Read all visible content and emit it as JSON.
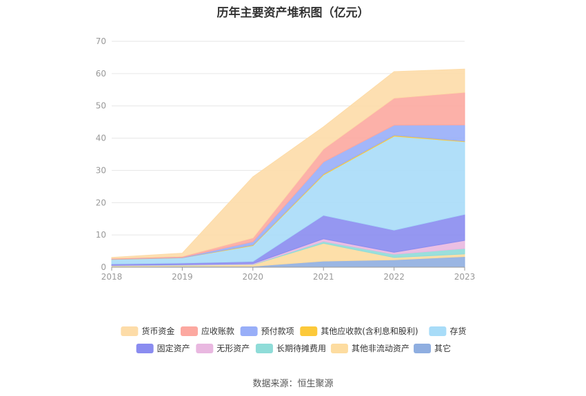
{
  "chart_data": {
    "type": "area",
    "title": "历年主要资产堆积图（亿元）",
    "x": [
      "2018",
      "2019",
      "2020",
      "2021",
      "2022",
      "2023"
    ],
    "ylim": [
      0,
      70
    ],
    "yticks": [
      0,
      10,
      20,
      30,
      40,
      50,
      60,
      70
    ],
    "grid": true,
    "legend_position": "bottom",
    "series": [
      {
        "name": "其它",
        "color": "#8faee0",
        "values": [
          0.2,
          0.3,
          0.3,
          1.9,
          2.3,
          3.3
        ]
      },
      {
        "name": "其他非流动资产",
        "color": "#fddca0",
        "values": [
          0.2,
          0.3,
          0.5,
          5.5,
          0.7,
          0.8
        ]
      },
      {
        "name": "长期待摊费用",
        "color": "#8fdcd8",
        "values": [
          0.1,
          0.1,
          0.1,
          0.6,
          1.0,
          1.7
        ]
      },
      {
        "name": "无形资产",
        "color": "#e9b8e0",
        "values": [
          0.1,
          0.1,
          0.2,
          0.8,
          0.6,
          2.5
        ]
      },
      {
        "name": "固定资产",
        "color": "#8a8cf0",
        "values": [
          0.4,
          0.5,
          0.7,
          7.3,
          6.9,
          8.1
        ]
      },
      {
        "name": "存货",
        "color": "#a8dcf8",
        "values": [
          1.4,
          1.6,
          4.9,
          12.5,
          29.1,
          22.5
        ]
      },
      {
        "name": "其他应收款(含利息和股利)",
        "color": "#fcc93a",
        "values": [
          0.05,
          0.05,
          0.2,
          0.3,
          0.3,
          0.2
        ]
      },
      {
        "name": "预付款项",
        "color": "#98aef8",
        "values": [
          0.1,
          0.1,
          1.0,
          3.7,
          3.1,
          5.0
        ]
      },
      {
        "name": "应收账款",
        "color": "#fca8a0",
        "values": [
          0.2,
          0.3,
          1.2,
          4.0,
          8.4,
          10.1
        ]
      },
      {
        "name": "货币资金",
        "color": "#fddca8",
        "values": [
          0.3,
          1.0,
          18.9,
          6.9,
          8.2,
          7.2
        ]
      }
    ]
  },
  "legend": [
    {
      "name": "货币资金",
      "color": "#fddca8"
    },
    {
      "name": "应收账款",
      "color": "#fca8a0"
    },
    {
      "name": "预付款项",
      "color": "#98aef8"
    },
    {
      "name": "其他应收款(含利息和股利)",
      "color": "#fcc93a"
    },
    {
      "name": "存货",
      "color": "#a8dcf8"
    },
    {
      "name": "固定资产",
      "color": "#8a8cf0"
    },
    {
      "name": "无形资产",
      "color": "#e9b8e0"
    },
    {
      "name": "长期待摊费用",
      "color": "#8fdcd8"
    },
    {
      "name": "其他非流动资产",
      "color": "#fddca0"
    },
    {
      "name": "其它",
      "color": "#8faee0"
    }
  ],
  "footer": {
    "source": "数据来源：恒生聚源"
  }
}
